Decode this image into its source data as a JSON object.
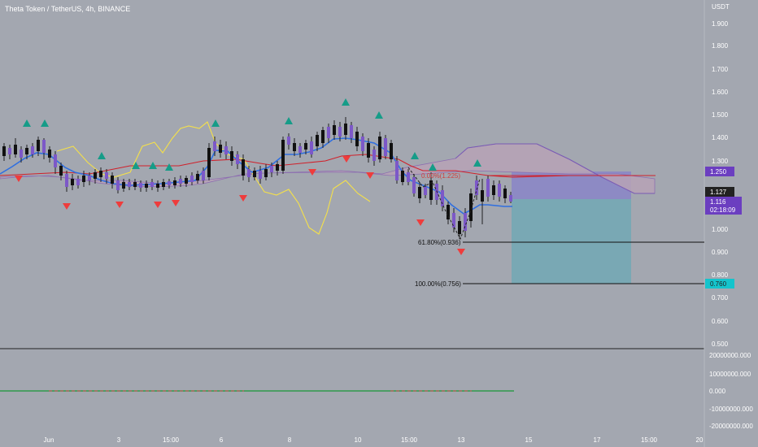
{
  "header": {
    "symbol_title": "Theta Token / TetherUS, 4h, BINANCE"
  },
  "price_axis": {
    "unit_label": "USDT",
    "ticks": [
      "1.900",
      "1.800",
      "1.700",
      "1.600",
      "1.500",
      "1.400",
      "1.300",
      "1.200",
      "1.100",
      "1.000",
      "0.900",
      "0.800",
      "0.700",
      "0.600",
      "0.500"
    ],
    "badges": {
      "target": "1.250",
      "last_price": "1.127",
      "current_price": "1.116",
      "countdown": "02:18:09",
      "stop": "0.760"
    }
  },
  "volume_axis": {
    "ticks": [
      "20000000.000",
      "10000000.000",
      "0.000",
      "-10000000.000",
      "-20000000.000"
    ]
  },
  "time_axis": {
    "ticks": [
      "Jun",
      "3",
      "15:00",
      "6",
      "8",
      "10",
      "15:00",
      "13",
      "15",
      "17",
      "15:00",
      "20"
    ]
  },
  "annotations": {
    "fib_0": "0.00%(1.225)",
    "fib_618": "61.80%(0.936)",
    "fib_100": "100.00%(0.756)"
  },
  "colors": {
    "background": "#a3a7b0",
    "axis_text": "#ffffff",
    "bull_candle": "#7c58c8",
    "bear_candle": "#111111",
    "blue_line": "#2f6fe0",
    "red_line": "#d0202a",
    "yellow_line": "#f4e04a",
    "cloud": "#b7a2b6",
    "marker_up": "#169c88",
    "marker_down": "#ee3c3c",
    "target_badge": "#6b3ec0",
    "stop_badge": "#14c4cc",
    "profit_zone": "#8a85c8",
    "loss_zone": "#74a9b5"
  }
}
